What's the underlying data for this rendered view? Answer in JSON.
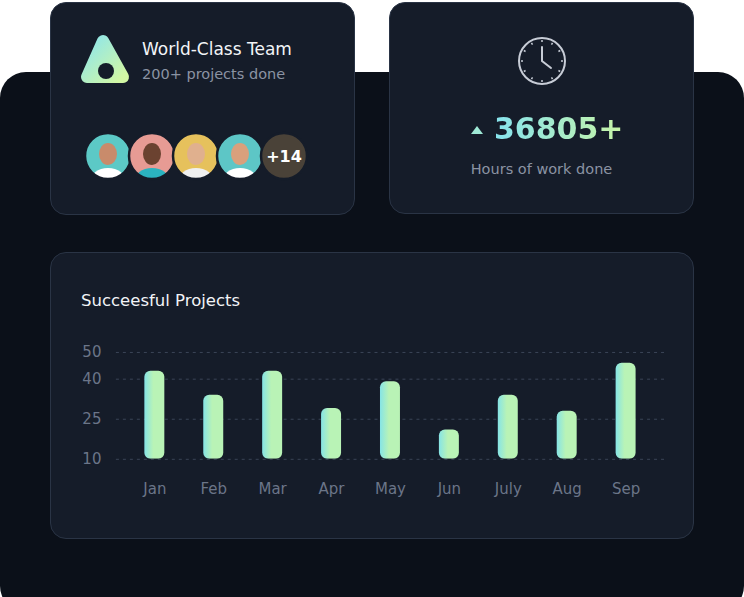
{
  "team_card": {
    "title": "World-Class Team",
    "subtitle": "200+ projects done",
    "avatars_more": "+14"
  },
  "hours_card": {
    "value": "36805+",
    "label": "Hours of work done"
  },
  "chart_data": {
    "type": "bar",
    "title": "Succeesful Projects",
    "categories": [
      "Jan",
      "Feb",
      "Mar",
      "Apr",
      "May",
      "Jun",
      "July",
      "Aug",
      "Sep"
    ],
    "values": [
      43,
      34,
      43,
      29,
      39,
      21,
      34,
      28,
      46
    ],
    "color": "#b9f3b6",
    "ylim": [
      10,
      50
    ],
    "yticks": [
      10,
      25,
      40,
      50
    ],
    "grid": true
  }
}
